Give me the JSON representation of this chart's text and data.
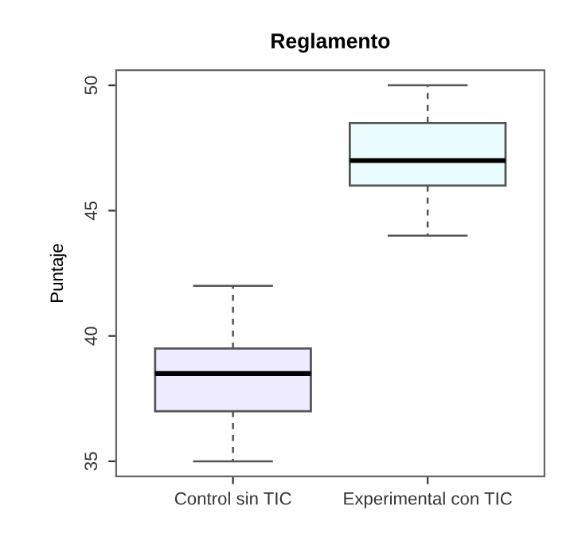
{
  "chart_data": {
    "type": "box",
    "title": "Reglamento",
    "ylabel": "Puntaje",
    "categories": [
      "Control sin TIC",
      "Experimental con TIC"
    ],
    "boxes": [
      {
        "low": 35,
        "q1": 37,
        "median": 38.5,
        "q3": 39.5,
        "high": 42
      },
      {
        "low": 44,
        "q1": 46,
        "median": 47,
        "q3": 48.5,
        "high": 50
      }
    ],
    "colors": [
      "#eeeaff",
      "#eafcfd"
    ],
    "ylim": [
      34.4,
      50.6
    ],
    "yticks": [
      35,
      40,
      45,
      50
    ],
    "grid": false,
    "legend": false
  }
}
